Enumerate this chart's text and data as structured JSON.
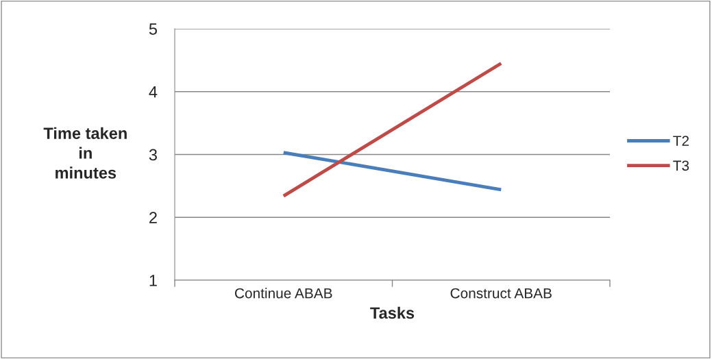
{
  "chart_data": {
    "type": "line",
    "xlabel": "Tasks",
    "ylabel": "Time taken\nin\nminutes",
    "categories": [
      "Continue ABAB",
      "Construct ABAB"
    ],
    "series": [
      {
        "name": "T2",
        "color": "#4a7ebb",
        "values": [
          3.03,
          2.44
        ]
      },
      {
        "name": "T3",
        "color": "#be4b48",
        "values": [
          2.34,
          4.45
        ]
      }
    ],
    "ylim": [
      1,
      5
    ],
    "yticks": [
      1,
      2,
      3,
      4,
      5
    ],
    "grid": "y",
    "legend": "right",
    "marker": "none",
    "line_style": "solid"
  }
}
